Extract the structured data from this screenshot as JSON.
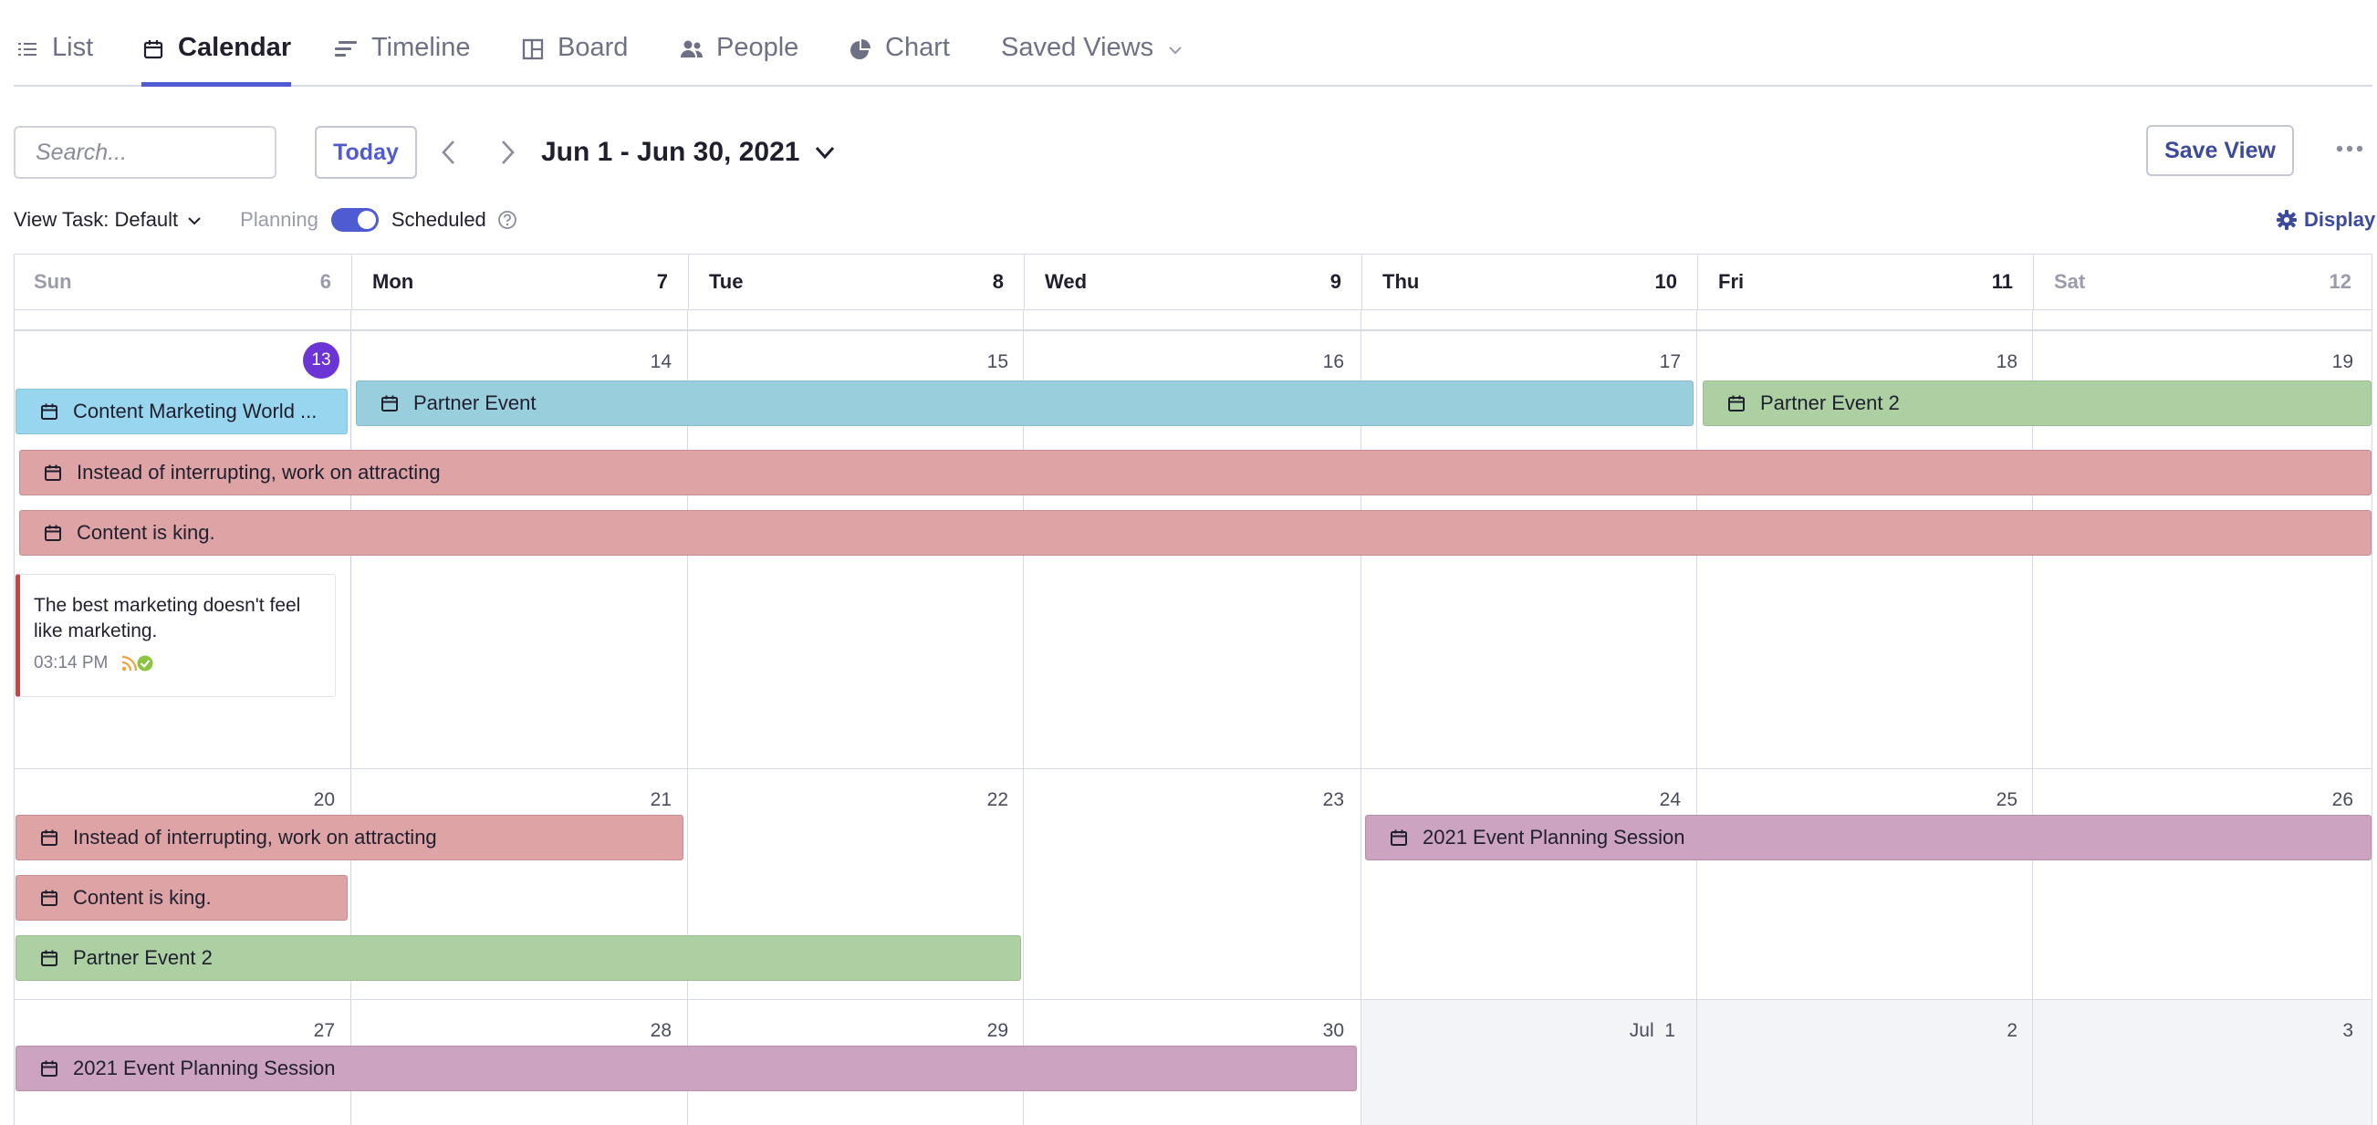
{
  "tabs": [
    {
      "label": "List",
      "icon": "list-icon"
    },
    {
      "label": "Calendar",
      "icon": "calendar-icon"
    },
    {
      "label": "Timeline",
      "icon": "timeline-icon"
    },
    {
      "label": "Board",
      "icon": "board-icon"
    },
    {
      "label": "People",
      "icon": "people-icon"
    },
    {
      "label": "Chart",
      "icon": "pie-chart-icon"
    },
    {
      "label": "Saved Views",
      "icon": "chevron-down-icon"
    }
  ],
  "active_tab": "Calendar",
  "toolbar": {
    "search_placeholder": "Search...",
    "today_label": "Today",
    "date_range": "Jun 1 - Jun 30, 2021",
    "save_view_label": "Save View"
  },
  "viewbar": {
    "view_task_label": "View Task: Default",
    "planning_label": "Planning",
    "scheduled_label": "Scheduled",
    "toggle_on": true,
    "display_label": "Display"
  },
  "colors": {
    "accent": "#4e5bd1",
    "today_badge": "#6a35d4",
    "event_blue": "#99cedc",
    "event_light_blue": "#98d6ef",
    "event_green": "#acd0a2",
    "event_red": "#dda3a5",
    "event_purple": "#cca3c0",
    "card_border": "#cc4141"
  },
  "calendar": {
    "headers": [
      {
        "day": "Sun",
        "num": "6"
      },
      {
        "day": "Mon",
        "num": "7"
      },
      {
        "day": "Tue",
        "num": "8"
      },
      {
        "day": "Wed",
        "num": "9"
      },
      {
        "day": "Thu",
        "num": "10"
      },
      {
        "day": "Fri",
        "num": "11"
      },
      {
        "day": "Sat",
        "num": "12"
      }
    ],
    "weeks": [
      {
        "days": [
          "13",
          "14",
          "15",
          "16",
          "17",
          "18",
          "19"
        ],
        "events": [
          {
            "title": "Content Marketing World ...",
            "color": "light-blue"
          },
          {
            "title": "Partner Event",
            "color": "blue"
          },
          {
            "title": "Partner Event 2",
            "color": "green"
          },
          {
            "title": "Instead of interrupting, work on attracting",
            "color": "red"
          },
          {
            "title": "Content is king.",
            "color": "red"
          }
        ],
        "card": {
          "title": "The best marketing doesn't feel like marketing.",
          "time": "03:14 PM",
          "icons": [
            "rss-icon",
            "check-circle-icon"
          ]
        }
      },
      {
        "days": [
          "20",
          "21",
          "22",
          "23",
          "24",
          "25",
          "26"
        ],
        "events": [
          {
            "title": "Instead of interrupting, work on attracting",
            "color": "red"
          },
          {
            "title": "2021 Event Planning Session",
            "color": "purple"
          },
          {
            "title": "Content is king.",
            "color": "red"
          },
          {
            "title": "Partner Event 2",
            "color": "green"
          }
        ]
      },
      {
        "days": [
          "27",
          "28",
          "29",
          "30",
          "Jul  1",
          "2",
          "3"
        ],
        "events": [
          {
            "title": "2021 Event Planning Session",
            "color": "purple"
          }
        ]
      }
    ]
  }
}
